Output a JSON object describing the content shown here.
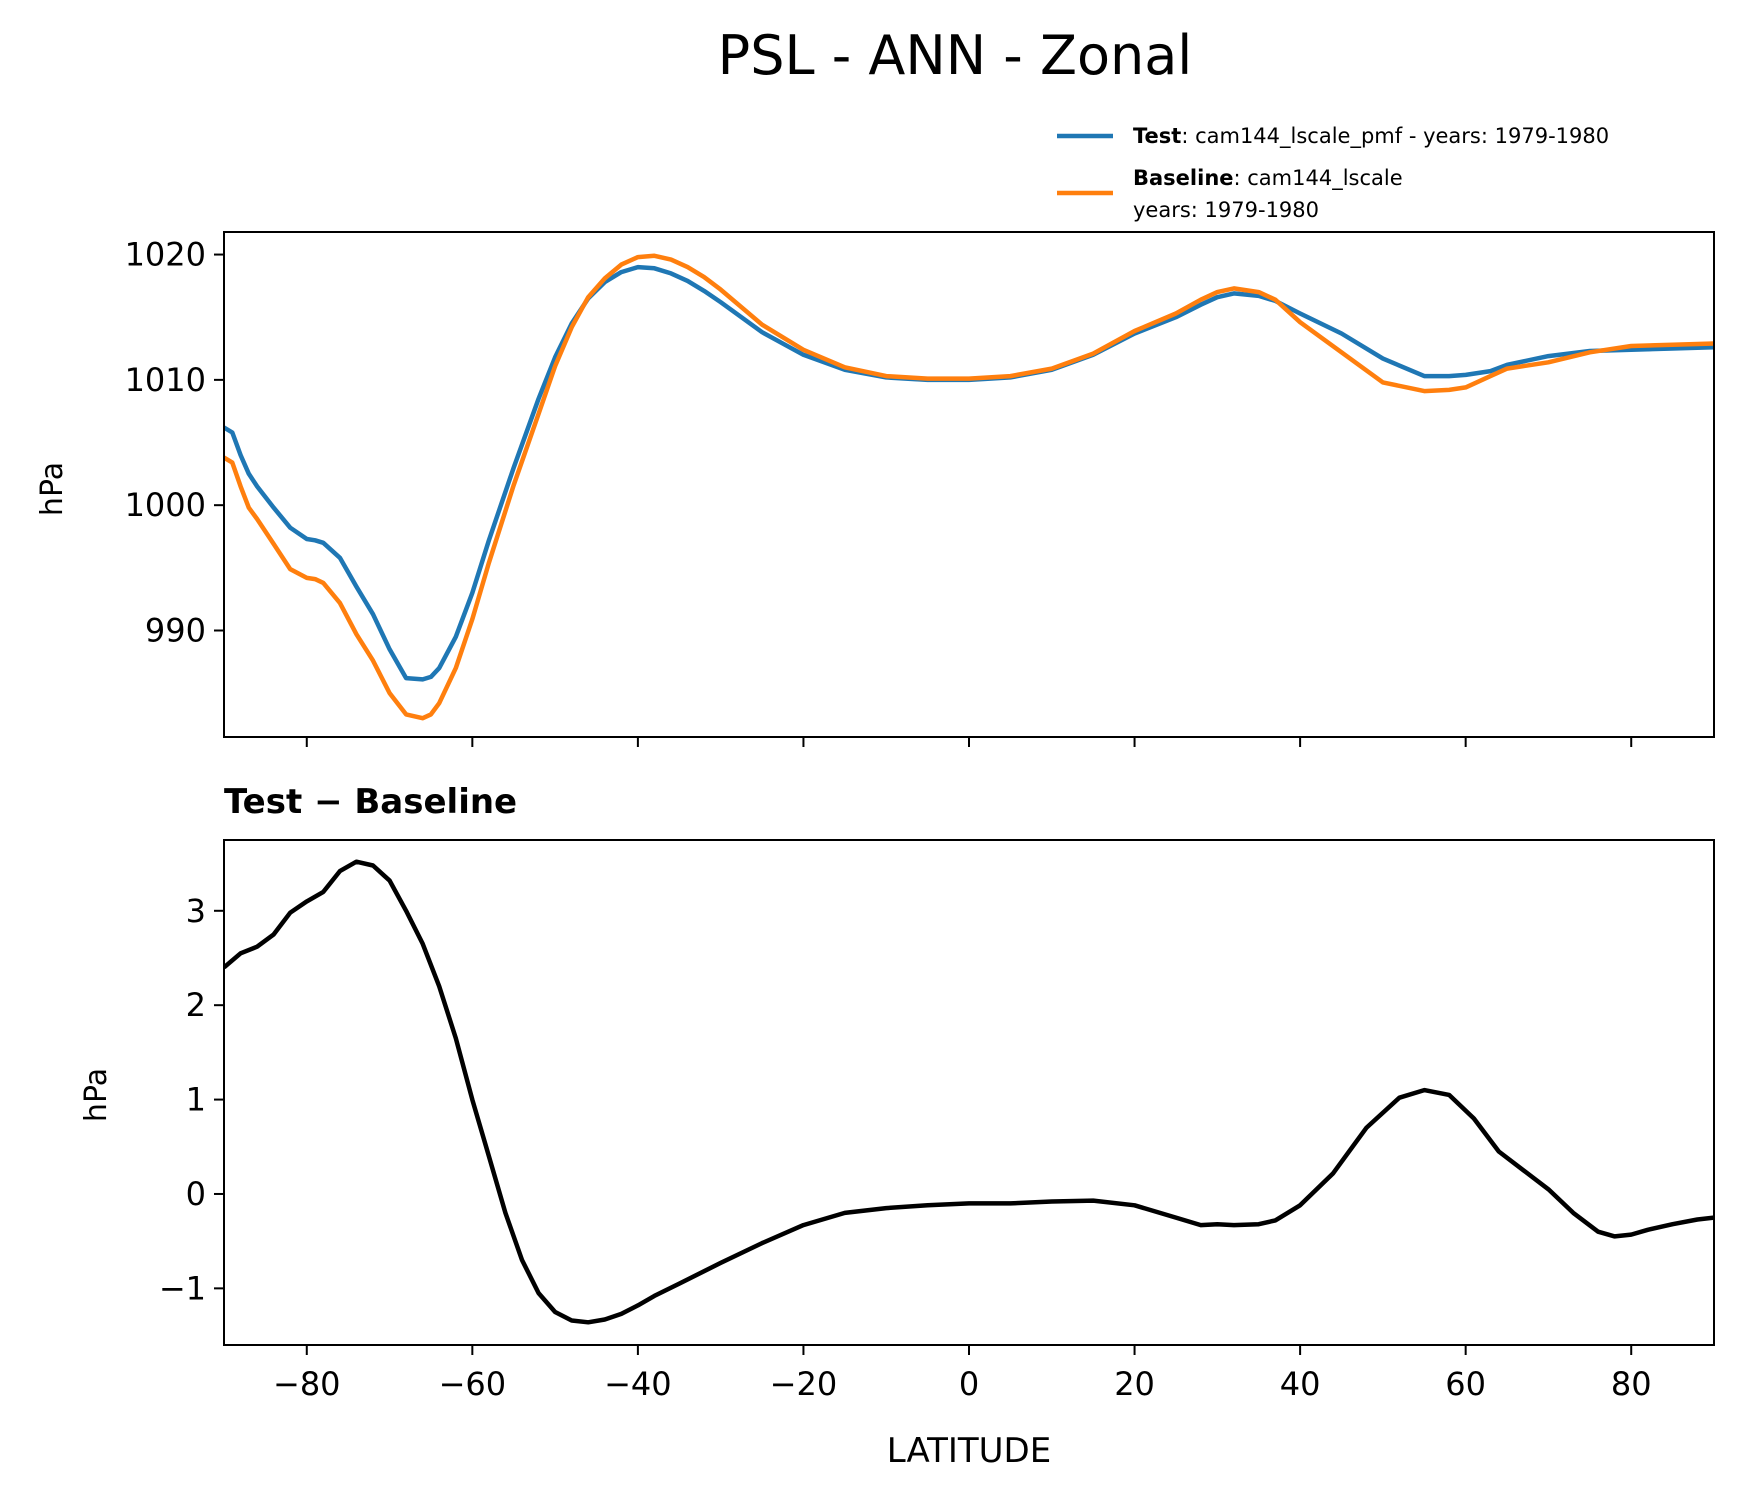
{
  "title": "PSL - ANN - Zonal",
  "colors": {
    "test": "#1f77b4",
    "baseline": "#ff7f0e",
    "diff": "#000000"
  },
  "legend": {
    "test_name": "Test",
    "test_desc": ": cam144_lscale_pmf - years: 1979-1980",
    "baseline_name": "Baseline",
    "baseline_desc": ": cam144_lscale",
    "baseline_desc2": "years: 1979-1980"
  },
  "chart_data": [
    {
      "type": "line",
      "title": "",
      "xlabel": "",
      "ylabel": "hPa",
      "xlim": [
        -90,
        90
      ],
      "ylim": [
        981.5,
        1021.8
      ],
      "yticks": [
        990,
        1000,
        1010,
        1020
      ],
      "x": [
        -90,
        -89,
        -88,
        -87,
        -86,
        -84,
        -82,
        -80,
        -79,
        -78,
        -76,
        -74,
        -72,
        -70,
        -68,
        -66,
        -65,
        -64,
        -62,
        -60,
        -58,
        -55,
        -52,
        -50,
        -48,
        -46,
        -44,
        -42,
        -40,
        -38,
        -36,
        -34,
        -32,
        -30,
        -25,
        -20,
        -15,
        -10,
        -5,
        0,
        5,
        10,
        15,
        20,
        25,
        28,
        30,
        32,
        35,
        37,
        40,
        45,
        50,
        55,
        58,
        60,
        63,
        65,
        70,
        75,
        80,
        85,
        90
      ],
      "series": [
        {
          "name": "Test",
          "values": [
            1006.2,
            1005.8,
            1004.0,
            1002.5,
            1001.5,
            999.8,
            998.2,
            997.3,
            997.2,
            997.0,
            995.8,
            993.5,
            991.3,
            988.5,
            986.2,
            986.1,
            986.3,
            987.0,
            989.5,
            993.0,
            997.2,
            1003.0,
            1008.5,
            1011.8,
            1014.5,
            1016.5,
            1017.8,
            1018.6,
            1019.0,
            1018.9,
            1018.5,
            1017.9,
            1017.1,
            1016.2,
            1013.8,
            1012.0,
            1010.8,
            1010.2,
            1010.0,
            1010.0,
            1010.2,
            1010.8,
            1012.0,
            1013.7,
            1015.0,
            1016.0,
            1016.6,
            1016.9,
            1016.7,
            1016.3,
            1015.3,
            1013.7,
            1011.7,
            1010.3,
            1010.3,
            1010.4,
            1010.7,
            1011.2,
            1011.9,
            1012.3,
            1012.4,
            1012.5,
            1012.6
          ]
        },
        {
          "name": "Baseline",
          "values": [
            1003.8,
            1003.4,
            1001.5,
            999.8,
            998.9,
            996.9,
            994.9,
            994.2,
            994.1,
            993.8,
            992.2,
            989.7,
            987.6,
            985.0,
            983.3,
            983.0,
            983.3,
            984.2,
            987.0,
            990.9,
            995.4,
            1001.6,
            1007.3,
            1011.1,
            1014.2,
            1016.6,
            1018.1,
            1019.2,
            1019.8,
            1019.9,
            1019.6,
            1019.0,
            1018.2,
            1017.2,
            1014.4,
            1012.4,
            1011.0,
            1010.3,
            1010.1,
            1010.1,
            1010.3,
            1010.9,
            1012.1,
            1013.9,
            1015.3,
            1016.4,
            1017.0,
            1017.3,
            1017.0,
            1016.4,
            1014.6,
            1012.2,
            1009.8,
            1009.1,
            1009.2,
            1009.4,
            1010.3,
            1010.9,
            1011.4,
            1012.2,
            1012.7,
            1012.8,
            1012.9
          ]
        }
      ]
    },
    {
      "type": "line",
      "title": "Test − Baseline",
      "xlabel": "LATITUDE",
      "ylabel": "hPa",
      "xlim": [
        -90,
        90
      ],
      "ylim": [
        -1.6,
        3.75
      ],
      "xticks": [
        -80,
        -60,
        -40,
        -20,
        0,
        20,
        40,
        60,
        80
      ],
      "xtick_labels": [
        "−80",
        "−60",
        "−40",
        "−20",
        "0",
        "20",
        "40",
        "60",
        "80"
      ],
      "yticks": [
        -1,
        0,
        1,
        2,
        3
      ],
      "ytick_labels": [
        "−1",
        "0",
        "1",
        "2",
        "3"
      ],
      "x": [
        -90,
        -88,
        -86,
        -84,
        -82,
        -80,
        -78,
        -76,
        -74,
        -72,
        -70,
        -68,
        -66,
        -64,
        -62,
        -60,
        -58,
        -56,
        -54,
        -52,
        -50,
        -48,
        -46,
        -44,
        -42,
        -40,
        -38,
        -35,
        -30,
        -25,
        -20,
        -15,
        -10,
        -5,
        0,
        5,
        10,
        15,
        20,
        25,
        28,
        30,
        32,
        35,
        37,
        40,
        44,
        48,
        52,
        55,
        58,
        61,
        64,
        67,
        70,
        73,
        76,
        78,
        80,
        82,
        85,
        88,
        90
      ],
      "series": [
        {
          "name": "Test − Baseline",
          "values": [
            2.4,
            2.55,
            2.62,
            2.75,
            2.98,
            3.1,
            3.2,
            3.42,
            3.52,
            3.48,
            3.32,
            3.0,
            2.65,
            2.2,
            1.65,
            1.0,
            0.4,
            -0.2,
            -0.7,
            -1.05,
            -1.25,
            -1.34,
            -1.36,
            -1.33,
            -1.27,
            -1.18,
            -1.08,
            -0.95,
            -0.73,
            -0.52,
            -0.33,
            -0.2,
            -0.15,
            -0.12,
            -0.1,
            -0.1,
            -0.08,
            -0.07,
            -0.12,
            -0.25,
            -0.33,
            -0.32,
            -0.33,
            -0.32,
            -0.28,
            -0.12,
            0.22,
            0.7,
            1.02,
            1.1,
            1.05,
            0.8,
            0.45,
            0.25,
            0.05,
            -0.2,
            -0.4,
            -0.45,
            -0.43,
            -0.38,
            -0.32,
            -0.27,
            -0.25
          ]
        }
      ]
    }
  ]
}
